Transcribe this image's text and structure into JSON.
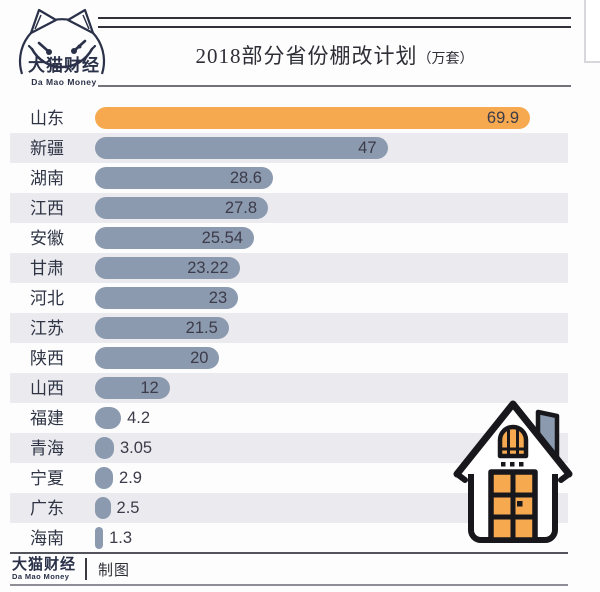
{
  "brand": {
    "name_cn": "大猫财经",
    "name_en": "Da Mao Money",
    "color": "#2a3148"
  },
  "header": {
    "title": "2018部分省份棚改计划",
    "unit_suffix": "（万套）"
  },
  "chart_data": {
    "type": "bar",
    "orientation": "horizontal",
    "title": "2018部分省份棚改计划（万套）",
    "unit": "万套",
    "categories": [
      "山东",
      "新疆",
      "湖南",
      "江西",
      "安徽",
      "甘肃",
      "河北",
      "江苏",
      "陕西",
      "山西",
      "福建",
      "青海",
      "宁夏",
      "广东",
      "海南"
    ],
    "values": [
      69.9,
      47,
      28.6,
      27.8,
      25.54,
      23.22,
      23,
      21.5,
      20,
      12,
      4.2,
      3.05,
      2.9,
      2.5,
      1.3
    ],
    "value_labels": [
      "69.9",
      "47",
      "28.6",
      "27.8",
      "25.54",
      "23.22",
      "23",
      "21.5",
      "20",
      "12",
      "4.2",
      "3.05",
      "2.9",
      "2.5",
      "1.3"
    ],
    "axis_max": 76,
    "inside_label_min": 12,
    "highlight_index": 0,
    "grid": false,
    "legend": false,
    "zebra_stripes": true,
    "colors": {
      "highlight_bar": "#f6a94f",
      "bar": "#8c9aaf",
      "row_stripe": "#ebebef",
      "category_text": "#2e3444",
      "value_text": "#3c3b49"
    }
  },
  "footer": {
    "credit": "制图"
  },
  "icons": {
    "cat_logo": "cat-face-smile-icon",
    "house": "house-chimney-icon",
    "house_chimney_color": "#8c9aaf",
    "house_accent_color": "#f6a94f"
  }
}
